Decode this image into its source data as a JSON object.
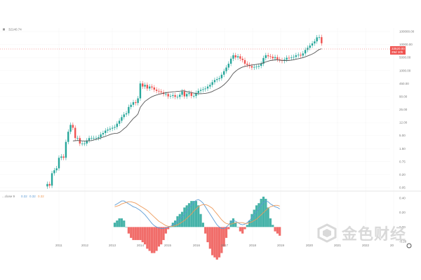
{
  "header": {
    "price_text": "32140.74"
  },
  "price_axis": {
    "labels": [
      "100000.00",
      "10000.00",
      "5000.00",
      "1000.00",
      "450.00",
      "90.00",
      "25.00",
      "12.00",
      "5.00",
      "1.50",
      "0.75",
      "0.20",
      "0.05"
    ]
  },
  "price_tag": {
    "value": "33520.00",
    "countdown": "29d 10h"
  },
  "indicator": {
    "legend": "...close 9",
    "values": [
      "0.32",
      "0.32",
      "0.32"
    ],
    "axis_labels": [
      "0.40",
      "0.20",
      "0.00",
      "-0.20"
    ]
  },
  "time_axis": {
    "labels": [
      "2011",
      "2012",
      "2013",
      "2014",
      "2015",
      "2016",
      "2017",
      "2018",
      "2019",
      "2020",
      "2021",
      "2022",
      "20"
    ]
  },
  "watermark": {
    "text": "金色财经"
  },
  "colors": {
    "up": "#26a69a",
    "down": "#ef5350",
    "ma": "#555555",
    "macd": "#5b9bd5",
    "signal": "#ed9a5a",
    "hist_up": "#26a69a",
    "hist_down": "#ef5350"
  },
  "chart_data": [
    {
      "type": "candlestick",
      "scale": "log",
      "x_start": "2010-08",
      "interval": "month",
      "ylim": [
        0.05,
        100000
      ],
      "close": [
        0.07,
        0.06,
        0.19,
        0.25,
        0.3,
        0.8,
        0.9,
        0.8,
        3.5,
        9,
        17,
        13,
        5,
        5,
        3,
        3,
        3,
        4,
        5,
        5,
        5,
        5,
        5.4,
        7,
        8,
        10,
        11,
        12,
        13,
        14,
        19,
        25,
        35,
        45,
        50,
        90,
        110,
        140,
        130,
        200,
        800,
        600,
        700,
        500,
        600,
        550,
        450,
        400,
        380,
        350,
        300,
        300,
        240,
        250,
        270,
        230,
        230,
        280,
        380,
        240,
        300,
        330,
        250,
        250,
        330,
        400,
        440,
        470,
        500,
        600,
        700,
        900,
        1100,
        1200,
        1300,
        1800,
        2500,
        3500,
        5000,
        8000,
        11000,
        9000,
        10000,
        8000,
        7000,
        5000,
        4500,
        4000,
        3500,
        3700,
        3800,
        4100,
        5000,
        8500,
        11000,
        10000,
        9600,
        8300,
        9200,
        7500,
        7000,
        6500,
        7300,
        8700,
        8500,
        9000,
        9400,
        11000,
        11500,
        10700,
        13000,
        18000,
        22000,
        27000,
        33000,
        40000,
        58000,
        59000,
        33520
      ],
      "ma": {
        "label": "20-period moving average"
      }
    },
    {
      "type": "bar",
      "x_start": "2013-01",
      "interval": "month",
      "series": [
        {
          "type": "histogram"
        },
        {
          "type": "line",
          "values": [
            0.3,
            0.32,
            0.34,
            0.36,
            0.36,
            0.34,
            0.32,
            0.3,
            0.28,
            0.27,
            0.25,
            0.23,
            0.2,
            0.17,
            0.13,
            0.09,
            0.05,
            0.02,
            0,
            -0.01,
            -0.02,
            -0.02,
            -0.01,
            0,
            0.01,
            0.03,
            0.05,
            0.08,
            0.11,
            0.14,
            0.18,
            0.22,
            0.26,
            0.3,
            0.34,
            0.37,
            0.38,
            0.36,
            0.33,
            0.28,
            0.23,
            0.18,
            0.13,
            0.08,
            0.03,
            0,
            -0.02,
            -0.02,
            0,
            0.03,
            0.07,
            0.09,
            0.08,
            0.06,
            0.04,
            0.03,
            0.04,
            0.06,
            0.09,
            0.13,
            0.17,
            0.21,
            0.25,
            0.3,
            0.34,
            0.36,
            0.35,
            0.32,
            0.3,
            0.28,
            0.27,
            0.25
          ]
        },
        {
          "type": "line",
          "values": [
            0.28,
            0.29,
            0.3,
            0.32,
            0.33,
            0.34,
            0.35,
            0.35,
            0.34,
            0.33,
            0.31,
            0.29,
            0.27,
            0.25,
            0.23,
            0.2,
            0.17,
            0.14,
            0.11,
            0.08,
            0.06,
            0.04,
            0.02,
            0.01,
            0.01,
            0.01,
            0.02,
            0.03,
            0.05,
            0.07,
            0.09,
            0.12,
            0.15,
            0.18,
            0.22,
            0.25,
            0.28,
            0.3,
            0.31,
            0.31,
            0.3,
            0.28,
            0.26,
            0.22,
            0.18,
            0.14,
            0.1,
            0.07,
            0.05,
            0.04,
            0.04,
            0.05,
            0.06,
            0.06,
            0.06,
            0.06,
            0.05,
            0.05,
            0.06,
            0.07,
            0.09,
            0.11,
            0.14,
            0.17,
            0.2,
            0.23,
            0.26,
            0.28,
            0.29,
            0.3,
            0.3,
            0.29
          ]
        }
      ],
      "ylim": [
        -0.2,
        0.4
      ]
    }
  ]
}
